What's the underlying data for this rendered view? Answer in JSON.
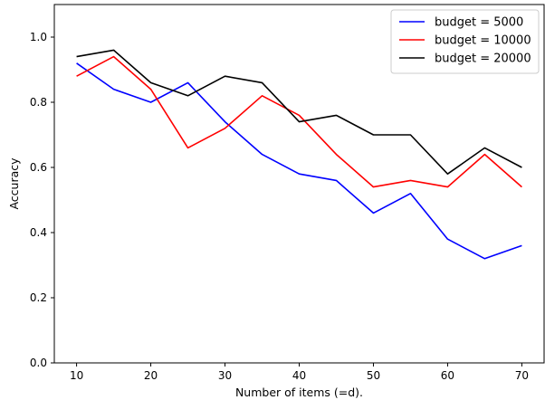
{
  "chart_data": {
    "type": "line",
    "title": "",
    "xlabel": "Number of items (=d).",
    "ylabel": "Accuracy",
    "xlim": [
      7,
      73
    ],
    "ylim": [
      0,
      1.1
    ],
    "xticks": [
      10,
      20,
      30,
      40,
      50,
      60,
      70
    ],
    "yticks": [
      0.0,
      0.2,
      0.4,
      0.6,
      0.8,
      1.0
    ],
    "ytick_labels": [
      "0.0",
      "0.2",
      "0.4",
      "0.6",
      "0.8",
      "1.0"
    ],
    "grid": false,
    "legend_position": "top-right",
    "x": [
      10,
      15,
      20,
      25,
      30,
      35,
      40,
      45,
      50,
      55,
      60,
      65,
      70
    ],
    "series": [
      {
        "name": "budget = 5000",
        "color": "#0000ff",
        "values": [
          0.92,
          0.84,
          0.8,
          0.86,
          0.74,
          0.64,
          0.58,
          0.56,
          0.46,
          0.52,
          0.38,
          0.32,
          0.36
        ]
      },
      {
        "name": "budget = 10000",
        "color": "#ff0000",
        "values": [
          0.88,
          0.94,
          0.84,
          0.66,
          0.72,
          0.82,
          0.76,
          0.64,
          0.54,
          0.56,
          0.54,
          0.64,
          0.54
        ]
      },
      {
        "name": "budget = 20000",
        "color": "#000000",
        "values": [
          0.94,
          0.96,
          0.86,
          0.82,
          0.88,
          0.86,
          0.74,
          0.76,
          0.7,
          0.7,
          0.58,
          0.66,
          0.6
        ]
      }
    ]
  }
}
